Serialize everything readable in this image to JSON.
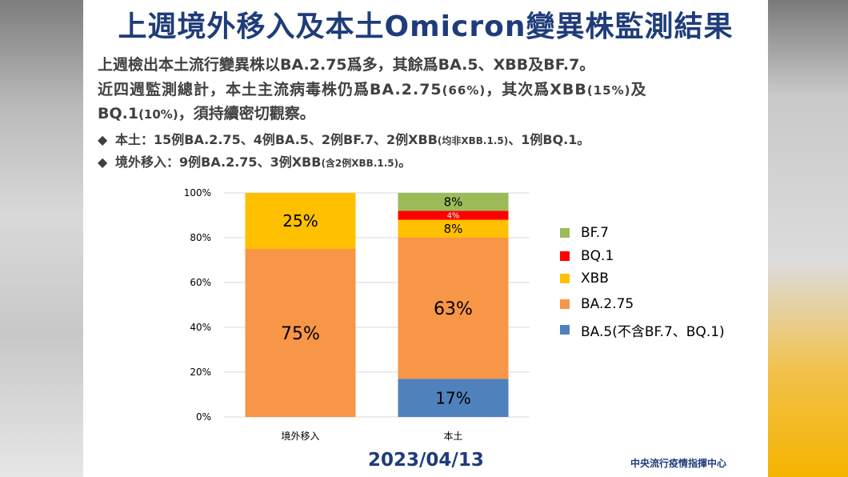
{
  "title": "上週境外移入及本土Omicron變異株監測結果",
  "paragraph1": "上週檢出本土流行變異株以BA.2.75爲多，其餘爲BA.5、XBB及BF.7。",
  "paragraph2": {
    "line1_a": "近四週監測總計，本土主流病毒株仍爲BA.2.75",
    "line1_b": "(66%)",
    "line1_c": "，其次爲XBB",
    "line1_d": "(15%)",
    "line1_e": "及",
    "line2_a": "BQ.1",
    "line2_b": "(10%)",
    "line2_c": "，須持續密切觀察。"
  },
  "bullets": [
    {
      "symbol": "◆",
      "a": "本土：15例BA.2.75、4例BA.5、2例BF.7、2例XBB",
      "b": "(均非XBB.1.5)",
      "c": "、1例BQ.1。"
    },
    {
      "symbol": "◆",
      "a": "境外移入：9例BA.2.75、3例XBB",
      "b": "(含2例XBB.1.5)",
      "c": "。"
    }
  ],
  "chart_data": {
    "type": "bar",
    "stacked": true,
    "categories": [
      "境外移入",
      "本土"
    ],
    "series": [
      {
        "name": "BA.5(不含BF.7、BQ.1)",
        "color": "#4f81bd",
        "values": [
          0,
          17
        ],
        "labels": [
          "",
          "17%"
        ]
      },
      {
        "name": "BA.2.75",
        "color": "#f79646",
        "values": [
          75,
          63
        ],
        "labels": [
          "75%",
          "63%"
        ]
      },
      {
        "name": "XBB",
        "color": "#ffc000",
        "values": [
          25,
          8
        ],
        "labels": [
          "25%",
          "8%"
        ]
      },
      {
        "name": "BQ.1",
        "color": "#ff0000",
        "values": [
          0,
          4
        ],
        "labels": [
          "",
          "4%"
        ]
      },
      {
        "name": "BF.7",
        "color": "#9bbb59",
        "values": [
          0,
          8
        ],
        "labels": [
          "",
          "8%"
        ]
      }
    ],
    "yticks": [
      "0%",
      "20%",
      "40%",
      "60%",
      "80%",
      "100%"
    ],
    "ylim": [
      0,
      100
    ],
    "grid": true,
    "legend_position": "right",
    "legend_order": [
      "BF.7",
      "BQ.1",
      "XBB",
      "BA.2.75",
      "BA.5(不含BF.7、BQ.1)"
    ]
  },
  "footer": {
    "date": "2023/04/13",
    "org": "中央流行疫情指揮中心"
  }
}
